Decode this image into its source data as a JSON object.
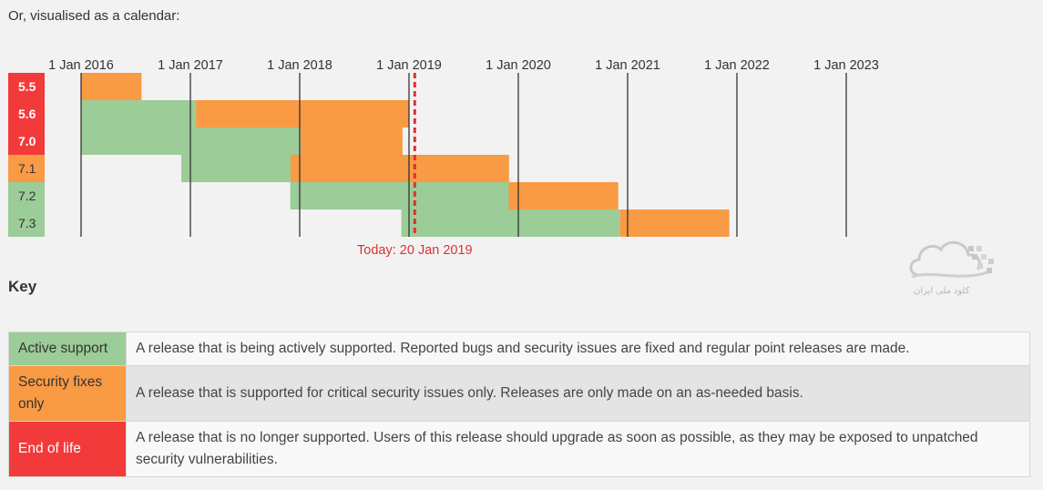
{
  "intro": "Or, visualised as a calendar:",
  "chart_data": {
    "type": "gantt",
    "x_ticks": [
      "1 Jan 2016",
      "1 Jan 2017",
      "1 Jan 2018",
      "1 Jan 2019",
      "1 Jan 2020",
      "1 Jan 2021",
      "1 Jan 2022",
      "1 Jan 2023"
    ],
    "xlim": [
      "2016-01-01",
      "2023-12-31"
    ],
    "today": {
      "date": "2019-01-20",
      "label": "Today: 20 Jan 2019"
    },
    "status_colors": {
      "active": "#9ccc98",
      "security": "#f99a44",
      "eol": "#f23a3a"
    },
    "releases": [
      {
        "version": "5.5",
        "status": "eol",
        "active": null,
        "security": [
          "2016-01-01",
          "2016-07-21"
        ]
      },
      {
        "version": "5.6",
        "status": "eol",
        "active": [
          "2016-01-01",
          "2017-01-19"
        ],
        "security": [
          "2017-01-19",
          "2018-12-31"
        ]
      },
      {
        "version": "7.0",
        "status": "eol",
        "active": [
          "2016-01-01",
          "2018-01-04"
        ],
        "security": [
          "2018-01-04",
          "2018-12-10"
        ]
      },
      {
        "version": "7.1",
        "status": "security",
        "active": [
          "2016-12-01",
          "2017-12-01"
        ],
        "security": [
          "2017-12-01",
          "2019-12-01"
        ]
      },
      {
        "version": "7.2",
        "status": "active",
        "active": [
          "2017-11-30",
          "2019-11-30"
        ],
        "security": [
          "2019-11-30",
          "2020-11-30"
        ]
      },
      {
        "version": "7.3",
        "status": "active",
        "active": [
          "2018-12-06",
          "2020-12-06"
        ],
        "security": [
          "2020-12-06",
          "2021-12-06"
        ]
      }
    ]
  },
  "key": {
    "heading": "Key",
    "rows": [
      {
        "status": "active",
        "label": "Active support",
        "description": "A release that is being actively supported. Reported bugs and security issues are fixed and regular point releases are made."
      },
      {
        "status": "security",
        "label": "Security fixes only",
        "description": "A release that is supported for critical security issues only. Releases are only made on an as-needed basis."
      },
      {
        "status": "eol",
        "label": "End of life",
        "description": "A release that is no longer supported. Users of this release should upgrade as soon as possible, as they may be exposed to unpatched security vulnerabilities."
      }
    ]
  },
  "watermark": {
    "text": "کلود ملی ایران",
    "icon": "cloud-logo-icon"
  }
}
